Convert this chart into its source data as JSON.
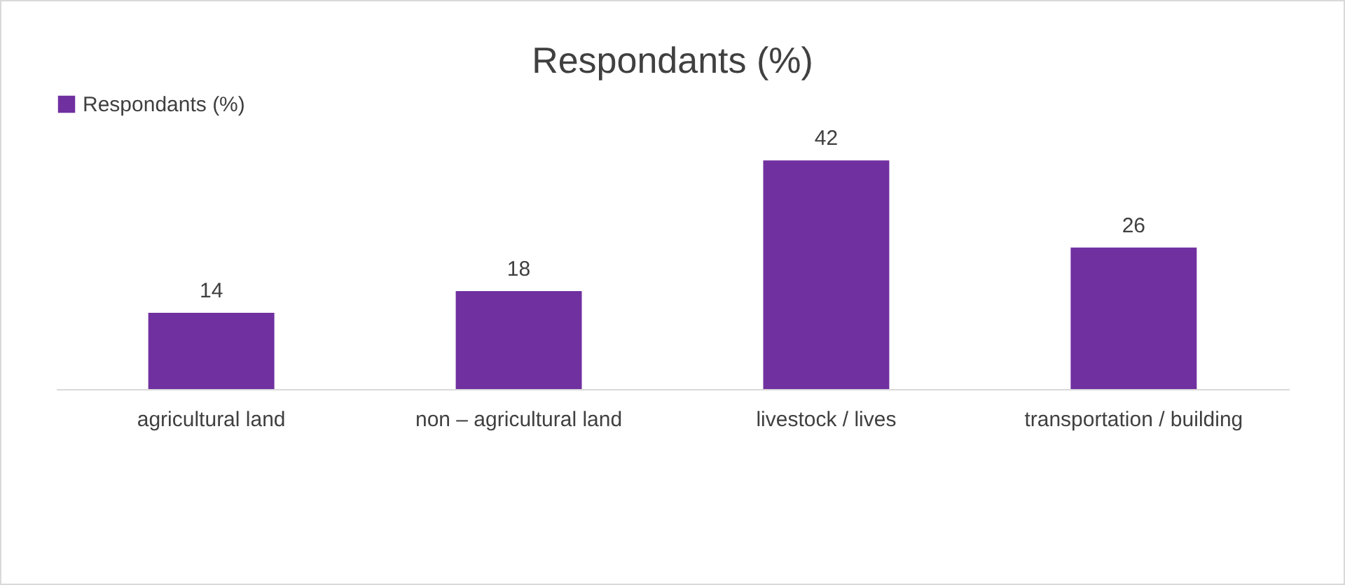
{
  "chart_data": {
    "type": "bar",
    "title": "Respondants (%)",
    "categories": [
      "agricultural land",
      "non – agricultural land",
      "livestock / lives",
      "transportation / building"
    ],
    "series": [
      {
        "name": "Respondants (%)",
        "color": "#7030a0",
        "values": [
          14,
          18,
          42,
          26
        ]
      }
    ],
    "data_labels": true,
    "legend": "top"
  }
}
